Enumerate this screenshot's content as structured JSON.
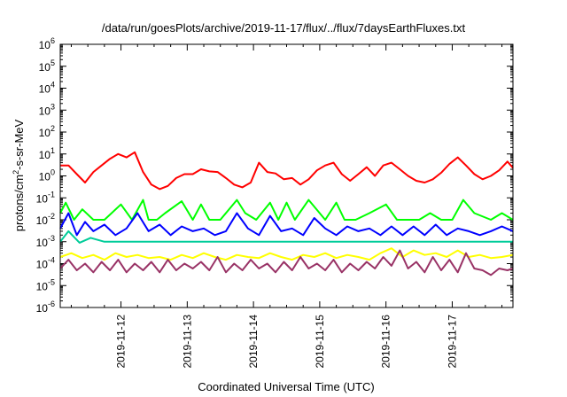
{
  "chart_data": {
    "type": "line",
    "title": "/data/run/goesPlots/archive/2019-11-17/flux/../flux/7daysEarthFluxes.txt",
    "xlabel": "Coordinated Universal Time (UTC)",
    "ylabel": "protons/cm²-s-sr-MeV",
    "y_scale": "log",
    "ylim": [
      1e-06,
      1000000.0
    ],
    "y_tick_labels": [
      {
        "base": "10",
        "exp": "-6"
      },
      {
        "base": "10",
        "exp": "-5"
      },
      {
        "base": "10",
        "exp": "-4"
      },
      {
        "base": "10",
        "exp": "-3"
      },
      {
        "base": "10",
        "exp": "-2"
      },
      {
        "base": "10",
        "exp": "-1"
      },
      {
        "base": "10",
        "exp": "0"
      },
      {
        "base": "10",
        "exp": "1"
      },
      {
        "base": "10",
        "exp": "2"
      },
      {
        "base": "10",
        "exp": "3"
      },
      {
        "base": "10",
        "exp": "4"
      },
      {
        "base": "10",
        "exp": "5"
      },
      {
        "base": "10",
        "exp": "6"
      }
    ],
    "x_range_days": [
      "2019-11-11T02:00",
      "2019-11-17T22:00"
    ],
    "x_tick_labels": [
      "2019-11-12",
      "2019-11-13",
      "2019-11-14",
      "2019-11-15",
      "2019-11-16",
      "2019-11-17"
    ],
    "x_tick_positions": [
      "2019-11-12",
      "2019-11-13",
      "2019-11-14",
      "2019-11-15",
      "2019-11-16",
      "2019-11-17"
    ],
    "grid": false,
    "legend": "none",
    "series": [
      {
        "color": "#ff0000",
        "x": [
          "2019-11-11T02:00",
          "2019-11-11T05:00",
          "2019-11-11T08:00",
          "2019-11-11T11:00",
          "2019-11-11T14:00",
          "2019-11-11T17:00",
          "2019-11-11T20:00",
          "2019-11-11T23:00",
          "2019-11-12T02:00",
          "2019-11-12T05:00",
          "2019-11-12T08:00",
          "2019-11-12T11:00",
          "2019-11-12T14:00",
          "2019-11-12T17:00",
          "2019-11-12T20:00",
          "2019-11-12T23:00",
          "2019-11-13T02:00",
          "2019-11-13T05:00",
          "2019-11-13T08:00",
          "2019-11-13T11:00",
          "2019-11-13T14:00",
          "2019-11-13T17:00",
          "2019-11-13T20:00",
          "2019-11-13T23:00",
          "2019-11-14T02:00",
          "2019-11-14T05:00",
          "2019-11-14T08:00",
          "2019-11-14T11:00",
          "2019-11-14T14:00",
          "2019-11-14T17:00",
          "2019-11-14T20:00",
          "2019-11-14T23:00",
          "2019-11-15T02:00",
          "2019-11-15T05:00",
          "2019-11-15T08:00",
          "2019-11-15T11:00",
          "2019-11-15T14:00",
          "2019-11-15T17:00",
          "2019-11-15T20:00",
          "2019-11-15T23:00",
          "2019-11-16T02:00",
          "2019-11-16T05:00",
          "2019-11-16T08:00",
          "2019-11-16T11:00",
          "2019-11-16T14:00",
          "2019-11-16T17:00",
          "2019-11-16T20:00",
          "2019-11-16T23:00",
          "2019-11-17T02:00",
          "2019-11-17T05:00",
          "2019-11-17T08:00",
          "2019-11-17T11:00",
          "2019-11-17T14:00",
          "2019-11-17T17:00",
          "2019-11-17T20:00",
          "2019-11-17T22:00"
        ],
        "y": [
          3,
          3,
          1.2,
          0.5,
          1.5,
          3,
          6,
          10,
          7,
          12,
          1.5,
          0.4,
          0.25,
          0.35,
          0.8,
          1.2,
          1.2,
          2,
          1.6,
          1.5,
          0.8,
          0.4,
          0.3,
          0.5,
          4,
          1.5,
          1.3,
          0.7,
          0.8,
          0.4,
          0.7,
          1.8,
          3,
          4,
          1.2,
          0.6,
          1.2,
          2.5,
          1,
          3,
          4,
          2,
          1,
          0.6,
          0.5,
          0.7,
          1.4,
          3.5,
          7,
          3,
          1.2,
          0.7,
          1,
          1.8,
          4.5,
          2.3
        ]
      },
      {
        "color": "#00ff00",
        "x": [
          "2019-11-11T02:00",
          "2019-11-11T04:00",
          "2019-11-11T07:00",
          "2019-11-11T10:00",
          "2019-11-11T14:00",
          "2019-11-11T18:00",
          "2019-11-12T00:00",
          "2019-11-12T04:00",
          "2019-11-12T08:00",
          "2019-11-12T10:00",
          "2019-11-12T13:00",
          "2019-11-12T16:00",
          "2019-11-12T22:00",
          "2019-11-13T02:00",
          "2019-11-13T05:00",
          "2019-11-13T08:00",
          "2019-11-13T12:00",
          "2019-11-13T18:00",
          "2019-11-13T21:00",
          "2019-11-14T01:00",
          "2019-11-14T06:00",
          "2019-11-14T09:00",
          "2019-11-14T12:00",
          "2019-11-14T15:00",
          "2019-11-14T20:00",
          "2019-11-15T02:00",
          "2019-11-15T06:00",
          "2019-11-15T09:00",
          "2019-11-15T13:00",
          "2019-11-15T18:00",
          "2019-11-16T00:00",
          "2019-11-16T04:00",
          "2019-11-16T08:00",
          "2019-11-16T12:00",
          "2019-11-16T16:00",
          "2019-11-16T20:00",
          "2019-11-17T00:00",
          "2019-11-17T04:00",
          "2019-11-17T08:00",
          "2019-11-17T14:00",
          "2019-11-17T18:00",
          "2019-11-17T22:00"
        ],
        "y": [
          0.02,
          0.06,
          0.01,
          0.03,
          0.01,
          0.01,
          0.05,
          0.01,
          0.08,
          0.01,
          0.01,
          0.02,
          0.07,
          0.01,
          0.05,
          0.01,
          0.01,
          0.08,
          0.02,
          0.01,
          0.06,
          0.01,
          0.06,
          0.01,
          0.08,
          0.01,
          0.06,
          0.01,
          0.01,
          0.02,
          0.05,
          0.01,
          0.01,
          0.01,
          0.02,
          0.01,
          0.01,
          0.08,
          0.02,
          0.01,
          0.02,
          0.01
        ]
      },
      {
        "color": "#0000ff",
        "x": [
          "2019-11-11T02:00",
          "2019-11-11T05:00",
          "2019-11-11T08:00",
          "2019-11-11T11:00",
          "2019-11-11T14:00",
          "2019-11-11T18:00",
          "2019-11-11T22:00",
          "2019-11-12T02:00",
          "2019-11-12T06:00",
          "2019-11-12T10:00",
          "2019-11-12T14:00",
          "2019-11-12T18:00",
          "2019-11-12T22:00",
          "2019-11-13T02:00",
          "2019-11-13T06:00",
          "2019-11-13T10:00",
          "2019-11-13T14:00",
          "2019-11-13T18:00",
          "2019-11-13T22:00",
          "2019-11-14T02:00",
          "2019-11-14T06:00",
          "2019-11-14T10:00",
          "2019-11-14T14:00",
          "2019-11-14T18:00",
          "2019-11-14T22:00",
          "2019-11-15T02:00",
          "2019-11-15T06:00",
          "2019-11-15T10:00",
          "2019-11-15T14:00",
          "2019-11-15T18:00",
          "2019-11-15T22:00",
          "2019-11-16T02:00",
          "2019-11-16T06:00",
          "2019-11-16T10:00",
          "2019-11-16T14:00",
          "2019-11-16T18:00",
          "2019-11-16T22:00",
          "2019-11-17T02:00",
          "2019-11-17T06:00",
          "2019-11-17T10:00",
          "2019-11-17T14:00",
          "2019-11-17T18:00",
          "2019-11-17T22:00"
        ],
        "y": [
          0.004,
          0.02,
          0.002,
          0.008,
          0.003,
          0.006,
          0.002,
          0.004,
          0.02,
          0.003,
          0.006,
          0.002,
          0.005,
          0.003,
          0.004,
          0.002,
          0.003,
          0.02,
          0.004,
          0.002,
          0.015,
          0.003,
          0.004,
          0.002,
          0.012,
          0.004,
          0.002,
          0.005,
          0.003,
          0.004,
          0.002,
          0.005,
          0.002,
          0.005,
          0.002,
          0.006,
          0.002,
          0.004,
          0.003,
          0.002,
          0.003,
          0.005,
          0.003
        ]
      },
      {
        "color": "#00cc99",
        "x": [
          "2019-11-11T02:00",
          "2019-11-11T05:00",
          "2019-11-11T09:00",
          "2019-11-11T13:00",
          "2019-11-11T18:00",
          "2019-11-12T00:00",
          "2019-11-12T06:00",
          "2019-11-12T12:00",
          "2019-11-12T18:00",
          "2019-11-13T00:00",
          "2019-11-13T06:00",
          "2019-11-13T12:00",
          "2019-11-13T18:00",
          "2019-11-14T00:00",
          "2019-11-14T06:00",
          "2019-11-14T12:00",
          "2019-11-14T18:00",
          "2019-11-15T00:00",
          "2019-11-15T06:00",
          "2019-11-15T12:00",
          "2019-11-15T18:00",
          "2019-11-16T00:00",
          "2019-11-16T06:00",
          "2019-11-16T12:00",
          "2019-11-16T18:00",
          "2019-11-17T00:00",
          "2019-11-17T06:00",
          "2019-11-17T12:00",
          "2019-11-17T18:00",
          "2019-11-17T22:00"
        ],
        "y": [
          0.001,
          0.003,
          0.0009,
          0.0015,
          0.001,
          0.001,
          0.001,
          0.001,
          0.001,
          0.001,
          0.001,
          0.001,
          0.001,
          0.001,
          0.001,
          0.001,
          0.001,
          0.001,
          0.001,
          0.001,
          0.001,
          0.001,
          0.001,
          0.001,
          0.001,
          0.001,
          0.001,
          0.001,
          0.001,
          0.001
        ]
      },
      {
        "color": "#ffff00",
        "x": [
          "2019-11-11T02:00",
          "2019-11-11T06:00",
          "2019-11-11T10:00",
          "2019-11-11T14:00",
          "2019-11-11T18:00",
          "2019-11-11T22:00",
          "2019-11-12T02:00",
          "2019-11-12T06:00",
          "2019-11-12T10:00",
          "2019-11-12T14:00",
          "2019-11-12T18:00",
          "2019-11-12T22:00",
          "2019-11-13T02:00",
          "2019-11-13T06:00",
          "2019-11-13T10:00",
          "2019-11-13T14:00",
          "2019-11-13T18:00",
          "2019-11-13T22:00",
          "2019-11-14T02:00",
          "2019-11-14T06:00",
          "2019-11-14T10:00",
          "2019-11-14T14:00",
          "2019-11-14T18:00",
          "2019-11-14T22:00",
          "2019-11-15T02:00",
          "2019-11-15T06:00",
          "2019-11-15T10:00",
          "2019-11-15T14:00",
          "2019-11-15T18:00",
          "2019-11-15T22:00",
          "2019-11-16T02:00",
          "2019-11-16T06:00",
          "2019-11-16T10:00",
          "2019-11-16T14:00",
          "2019-11-16T18:00",
          "2019-11-16T22:00",
          "2019-11-17T02:00",
          "2019-11-17T06:00",
          "2019-11-17T10:00",
          "2019-11-17T14:00",
          "2019-11-17T18:00",
          "2019-11-17T22:00"
        ],
        "y": [
          0.0002,
          0.0003,
          0.00018,
          0.00025,
          0.00015,
          0.0003,
          0.0002,
          0.00025,
          0.00018,
          0.0002,
          0.00015,
          0.00025,
          0.00018,
          0.0003,
          0.0002,
          0.00015,
          0.00025,
          0.0002,
          0.00018,
          0.0003,
          0.0002,
          0.00015,
          0.00025,
          0.0002,
          0.0003,
          0.00018,
          0.00025,
          0.0002,
          0.00015,
          0.0003,
          0.0005,
          0.0002,
          0.0004,
          0.00025,
          0.0003,
          0.0002,
          0.0004,
          0.0002,
          0.00025,
          0.00018,
          0.0002,
          0.00025
        ]
      },
      {
        "color": "#993366",
        "x": [
          "2019-11-11T02:00",
          "2019-11-11T05:00",
          "2019-11-11T08:00",
          "2019-11-11T11:00",
          "2019-11-11T14:00",
          "2019-11-11T17:00",
          "2019-11-11T20:00",
          "2019-11-11T23:00",
          "2019-11-12T02:00",
          "2019-11-12T05:00",
          "2019-11-12T08:00",
          "2019-11-12T11:00",
          "2019-11-12T14:00",
          "2019-11-12T17:00",
          "2019-11-12T20:00",
          "2019-11-12T23:00",
          "2019-11-13T02:00",
          "2019-11-13T05:00",
          "2019-11-13T08:00",
          "2019-11-13T11:00",
          "2019-11-13T14:00",
          "2019-11-13T17:00",
          "2019-11-13T20:00",
          "2019-11-13T23:00",
          "2019-11-14T02:00",
          "2019-11-14T05:00",
          "2019-11-14T08:00",
          "2019-11-14T11:00",
          "2019-11-14T14:00",
          "2019-11-14T17:00",
          "2019-11-14T20:00",
          "2019-11-14T23:00",
          "2019-11-15T02:00",
          "2019-11-15T05:00",
          "2019-11-15T08:00",
          "2019-11-15T11:00",
          "2019-11-15T14:00",
          "2019-11-15T17:00",
          "2019-11-15T20:00",
          "2019-11-15T23:00",
          "2019-11-16T02:00",
          "2019-11-16T05:00",
          "2019-11-16T08:00",
          "2019-11-16T11:00",
          "2019-11-16T14:00",
          "2019-11-16T17:00",
          "2019-11-16T20:00",
          "2019-11-16T23:00",
          "2019-11-17T02:00",
          "2019-11-17T05:00",
          "2019-11-17T08:00",
          "2019-11-17T11:00",
          "2019-11-17T14:00",
          "2019-11-17T17:00",
          "2019-11-17T20:00",
          "2019-11-17T22:00"
        ],
        "y": [
          6e-05,
          0.00015,
          5e-05,
          0.0001,
          4e-05,
          0.00012,
          5e-05,
          0.00015,
          4e-05,
          0.0001,
          5e-05,
          0.00012,
          4e-05,
          0.00015,
          5e-05,
          0.0001,
          6e-05,
          0.00012,
          5e-05,
          0.0002,
          4e-05,
          0.0001,
          5e-05,
          0.00015,
          6e-05,
          0.0001,
          4e-05,
          0.00012,
          5e-05,
          0.0002,
          6e-05,
          0.0001,
          5e-05,
          0.00015,
          4e-05,
          0.0001,
          5e-05,
          0.00012,
          6e-05,
          0.0002,
          8e-05,
          0.0004,
          6e-05,
          0.00012,
          4e-05,
          0.0002,
          5e-05,
          0.00015,
          4e-05,
          0.0003,
          6e-05,
          5e-05,
          3e-05,
          6e-05,
          5e-05,
          6e-05
        ]
      }
    ]
  }
}
